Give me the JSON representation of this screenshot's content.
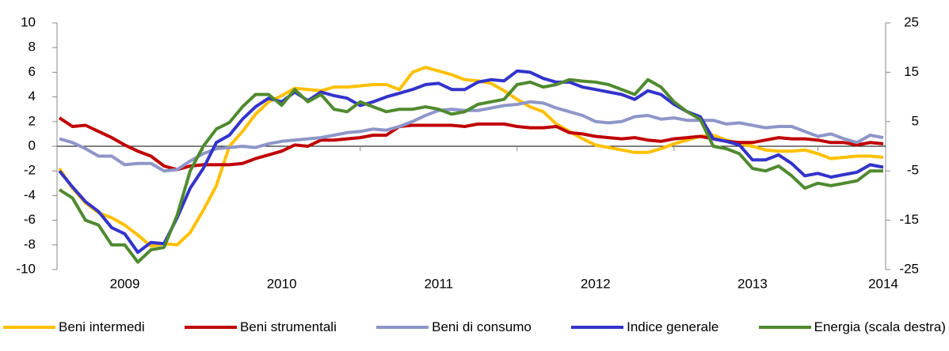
{
  "chart_data": {
    "type": "line",
    "categories": [
      null,
      null,
      null,
      null,
      null,
      "2009",
      null,
      null,
      null,
      null,
      null,
      null,
      null,
      null,
      null,
      null,
      null,
      "2010",
      null,
      null,
      null,
      null,
      null,
      null,
      null,
      null,
      null,
      null,
      null,
      "2011",
      null,
      null,
      null,
      null,
      null,
      null,
      null,
      null,
      null,
      null,
      null,
      "2012",
      null,
      null,
      null,
      null,
      null,
      null,
      null,
      null,
      null,
      null,
      null,
      "2013",
      null,
      null,
      null,
      null,
      null,
      null,
      null,
      null,
      null,
      "2014"
    ],
    "ylim": [
      -10,
      10
    ],
    "yticks": [
      -10,
      -8,
      -6,
      -4,
      -2,
      0,
      2,
      4,
      6,
      8,
      10
    ],
    "y2lim": [
      -25,
      25
    ],
    "y2ticks": [
      -25,
      -15,
      -5,
      5,
      15,
      25
    ],
    "series": [
      {
        "name": "Beni intermedi",
        "color": "#ffc000",
        "values": [
          -1.8,
          -3.4,
          -4.6,
          -5.4,
          -5.8,
          -6.4,
          -7.2,
          -8.1,
          -7.9,
          -8.0,
          -7,
          -5.2,
          -3.2,
          0,
          1.2,
          2.6,
          3.6,
          4.1,
          4.7,
          4.6,
          4.5,
          4.8,
          4.8,
          4.9,
          5.0,
          5.0,
          4.6,
          6.0,
          6.4,
          6.1,
          5.8,
          5.4,
          5.3,
          5.1,
          4.5,
          3.8,
          3.2,
          2.8,
          1.8,
          1.2,
          0.6,
          0.1,
          -0.1,
          -0.3,
          -0.5,
          -0.5,
          -0.2,
          0.2,
          0.5,
          0.8,
          0.9,
          0.5,
          0.2,
          0,
          -0.3,
          -0.4,
          -0.4,
          -0.3,
          -0.6,
          -1.0,
          -0.9,
          -0.8,
          -0.8,
          -0.9
        ]
      },
      {
        "name": "Beni strumentali",
        "color": "#c00000",
        "values": [
          2.3,
          1.6,
          1.7,
          1.2,
          0.7,
          0.1,
          -0.4,
          -0.8,
          -1.6,
          -1.9,
          -1.6,
          -1.5,
          -1.5,
          -1.5,
          -1.4,
          -1,
          -0.7,
          -0.4,
          0.1,
          0,
          0.5,
          0.5,
          0.6,
          0.7,
          0.9,
          0.9,
          1.6,
          1.7,
          1.7,
          1.7,
          1.7,
          1.6,
          1.8,
          1.8,
          1.8,
          1.6,
          1.5,
          1.5,
          1.6,
          1.1,
          1.0,
          0.8,
          0.7,
          0.6,
          0.7,
          0.5,
          0.4,
          0.6,
          0.7,
          0.8,
          0.6,
          0.4,
          0.3,
          0.3,
          0.5,
          0.7,
          0.6,
          0.6,
          0.5,
          0.3,
          0.3,
          0.1,
          0.3,
          0.2
        ]
      },
      {
        "name": "Beni di consumo",
        "color": "#8e96c8",
        "values": [
          0.6,
          0.3,
          -0.2,
          -0.8,
          -0.8,
          -1.5,
          -1.4,
          -1.4,
          -2,
          -1.9,
          -1.2,
          -0.6,
          -0.2,
          -0.1,
          0,
          -0.1,
          0.2,
          0.4,
          0.5,
          0.6,
          0.7,
          0.9,
          1.1,
          1.2,
          1.4,
          1.3,
          1.6,
          2.0,
          2.5,
          2.9,
          3.0,
          2.9,
          2.9,
          3.1,
          3.3,
          3.4,
          3.6,
          3.5,
          3.1,
          2.8,
          2.5,
          2.0,
          1.9,
          2.0,
          2.4,
          2.5,
          2.2,
          2.3,
          2.1,
          2.1,
          2.1,
          1.8,
          1.9,
          1.7,
          1.5,
          1.6,
          1.6,
          1.2,
          0.8,
          1.0,
          0.6,
          0.3,
          0.9,
          0.7
        ]
      },
      {
        "name": "Indice generale",
        "color": "#3333cc",
        "values": [
          -2,
          -3.3,
          -4.5,
          -5.3,
          -6.6,
          -7.1,
          -8.6,
          -7.8,
          -7.9,
          -5.8,
          -3.4,
          -1.8,
          0.3,
          0.9,
          2.2,
          3.2,
          3.9,
          3.6,
          4.4,
          3.7,
          4.4,
          4.1,
          3.9,
          3.3,
          3.6,
          4.0,
          4.3,
          4.6,
          5.0,
          5.1,
          4.6,
          4.6,
          5.2,
          5.4,
          5.3,
          6.1,
          6.0,
          5.5,
          5.2,
          5.2,
          4.8,
          4.6,
          4.4,
          4.2,
          3.8,
          4.5,
          4.2,
          3.4,
          2.8,
          2.4,
          0.6,
          0.4,
          0.1,
          -1.1,
          -1.1,
          -0.7,
          -1.4,
          -2.4,
          -2.2,
          -2.5,
          -2.3,
          -2.1,
          -1.5,
          -1.7
        ]
      },
      {
        "name": "Energia (scala destra)",
        "color": "#4f8a2f",
        "axis": "y2",
        "values": [
          -8.8,
          -10.5,
          -15,
          -16,
          -20,
          -20,
          -23.5,
          -21,
          -20.5,
          -14,
          -5,
          0,
          3.5,
          4.8,
          8,
          10.5,
          10.5,
          8.3,
          11.5,
          9,
          10.5,
          7.5,
          7,
          9,
          8,
          7,
          7.5,
          7.5,
          8,
          7.5,
          6.5,
          7,
          8.5,
          9,
          9.5,
          12.5,
          13,
          12,
          12.5,
          13.5,
          13.2,
          13,
          12.5,
          11.5,
          10.5,
          13.5,
          12,
          9,
          7,
          5.5,
          0,
          -0.5,
          -1.5,
          -4.5,
          -5,
          -4,
          -6,
          -8.5,
          -7.5,
          -8,
          -7.5,
          -7,
          -5,
          -5
        ]
      }
    ]
  }
}
